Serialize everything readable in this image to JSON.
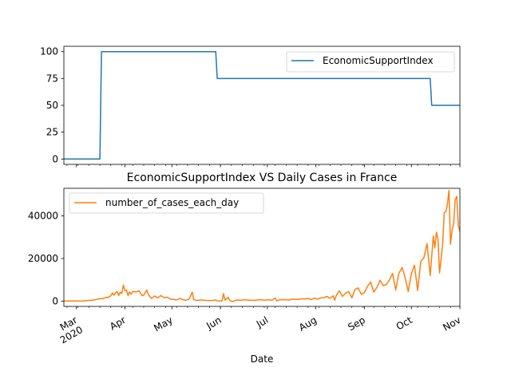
{
  "figure": {
    "xlabel": "Date",
    "x_tick_labels": [
      {
        "date": "2020-03-01",
        "lines": [
          "Mar",
          "2020"
        ]
      },
      {
        "date": "2020-04-01",
        "lines": [
          "Apr"
        ]
      },
      {
        "date": "2020-05-01",
        "lines": [
          "May"
        ]
      },
      {
        "date": "2020-06-01",
        "lines": [
          "Jun"
        ]
      },
      {
        "date": "2020-07-01",
        "lines": [
          "Jul"
        ]
      },
      {
        "date": "2020-08-01",
        "lines": [
          "Aug"
        ]
      },
      {
        "date": "2020-09-01",
        "lines": [
          "Sep"
        ]
      },
      {
        "date": "2020-10-01",
        "lines": [
          "Oct"
        ]
      },
      {
        "date": "2020-11-01",
        "lines": [
          "Nov"
        ]
      }
    ]
  },
  "chart_data": [
    {
      "type": "line",
      "title": "",
      "xlabel": "",
      "ylabel": "",
      "xlim": [
        "2020-02-22",
        "2020-11-01"
      ],
      "ylim": [
        -5,
        105
      ],
      "yticks": [
        0,
        25,
        50,
        75,
        100
      ],
      "legend": "top-right",
      "grid": false,
      "series": [
        {
          "name": "EconomicSupportIndex",
          "color": "#1f77b4",
          "step": true,
          "points": [
            [
              "2020-02-22",
              0
            ],
            [
              "2020-03-16",
              0
            ],
            [
              "2020-03-17",
              100
            ],
            [
              "2020-05-29",
              100
            ],
            [
              "2020-05-30",
              75
            ],
            [
              "2020-10-13",
              75
            ],
            [
              "2020-10-14",
              50
            ],
            [
              "2020-11-01",
              50
            ]
          ]
        }
      ]
    },
    {
      "type": "line",
      "title": "EconomicSupportIndex VS Daily Cases in France",
      "xlabel": "Date",
      "ylabel": "",
      "xlim": [
        "2020-02-22",
        "2020-11-01"
      ],
      "ylim": [
        -2500,
        53000
      ],
      "yticks": [
        0,
        20000,
        40000
      ],
      "legend": "top-left",
      "grid": false,
      "series": [
        {
          "name": "number_of_cases_each_day",
          "color": "#ff7f0e",
          "points": [
            [
              "2020-02-22",
              0
            ],
            [
              "2020-02-29",
              20
            ],
            [
              "2020-03-05",
              100
            ],
            [
              "2020-03-09",
              300
            ],
            [
              "2020-03-12",
              500
            ],
            [
              "2020-03-14",
              800
            ],
            [
              "2020-03-16",
              1200
            ],
            [
              "2020-03-18",
              1100
            ],
            [
              "2020-03-20",
              1800
            ],
            [
              "2020-03-21",
              1600
            ],
            [
              "2020-03-23",
              2500
            ],
            [
              "2020-03-24",
              3800
            ],
            [
              "2020-03-25",
              2800
            ],
            [
              "2020-03-26",
              3900
            ],
            [
              "2020-03-27",
              4500
            ],
            [
              "2020-03-28",
              2600
            ],
            [
              "2020-03-29",
              4200
            ],
            [
              "2020-03-30",
              3500
            ],
            [
              "2020-03-31",
              7500
            ],
            [
              "2020-04-01",
              4800
            ],
            [
              "2020-04-02",
              5200
            ],
            [
              "2020-04-03",
              2500
            ],
            [
              "2020-04-04",
              4300
            ],
            [
              "2020-04-05",
              3200
            ],
            [
              "2020-04-06",
              4500
            ],
            [
              "2020-04-08",
              4300
            ],
            [
              "2020-04-10",
              4800
            ],
            [
              "2020-04-12",
              2500
            ],
            [
              "2020-04-13",
              2800
            ],
            [
              "2020-04-15",
              5200
            ],
            [
              "2020-04-16",
              3000
            ],
            [
              "2020-04-18",
              1200
            ],
            [
              "2020-04-20",
              2400
            ],
            [
              "2020-04-22",
              1500
            ],
            [
              "2020-04-24",
              2600
            ],
            [
              "2020-04-26",
              1600
            ],
            [
              "2020-04-28",
              1800
            ],
            [
              "2020-04-30",
              1000
            ],
            [
              "2020-05-02",
              800
            ],
            [
              "2020-05-04",
              500
            ],
            [
              "2020-05-06",
              1200
            ],
            [
              "2020-05-08",
              700
            ],
            [
              "2020-05-10",
              400
            ],
            [
              "2020-05-12",
              900
            ],
            [
              "2020-05-14",
              4200
            ],
            [
              "2020-05-15",
              600
            ],
            [
              "2020-05-17",
              300
            ],
            [
              "2020-05-20",
              500
            ],
            [
              "2020-05-23",
              300
            ],
            [
              "2020-05-26",
              200
            ],
            [
              "2020-05-29",
              500
            ],
            [
              "2020-05-30",
              100
            ],
            [
              "2020-06-02",
              0
            ],
            [
              "2020-06-03",
              3500
            ],
            [
              "2020-06-04",
              400
            ],
            [
              "2020-06-06",
              1800
            ],
            [
              "2020-06-07",
              200
            ],
            [
              "2020-06-09",
              -200
            ],
            [
              "2020-06-11",
              500
            ],
            [
              "2020-06-14",
              400
            ],
            [
              "2020-06-17",
              600
            ],
            [
              "2020-06-20",
              400
            ],
            [
              "2020-06-23",
              300
            ],
            [
              "2020-06-26",
              700
            ],
            [
              "2020-06-29",
              400
            ],
            [
              "2020-07-02",
              600
            ],
            [
              "2020-07-04",
              400
            ],
            [
              "2020-07-06",
              1500
            ],
            [
              "2020-07-07",
              100
            ],
            [
              "2020-07-09",
              600
            ],
            [
              "2020-07-12",
              700
            ],
            [
              "2020-07-15",
              500
            ],
            [
              "2020-07-17",
              900
            ],
            [
              "2020-07-20",
              800
            ],
            [
              "2020-07-23",
              1100
            ],
            [
              "2020-07-25",
              900
            ],
            [
              "2020-07-27",
              1300
            ],
            [
              "2020-07-29",
              700
            ],
            [
              "2020-07-31",
              1400
            ],
            [
              "2020-08-02",
              900
            ],
            [
              "2020-08-04",
              1500
            ],
            [
              "2020-08-06",
              1600
            ],
            [
              "2020-08-08",
              2200
            ],
            [
              "2020-08-10",
              1300
            ],
            [
              "2020-08-12",
              2500
            ],
            [
              "2020-08-13",
              400
            ],
            [
              "2020-08-14",
              2600
            ],
            [
              "2020-08-16",
              4800
            ],
            [
              "2020-08-18",
              2200
            ],
            [
              "2020-08-20",
              3800
            ],
            [
              "2020-08-22",
              4400
            ],
            [
              "2020-08-24",
              1500
            ],
            [
              "2020-08-26",
              5400
            ],
            [
              "2020-08-28",
              6200
            ],
            [
              "2020-08-30",
              3200
            ],
            [
              "2020-09-01",
              4000
            ],
            [
              "2020-09-03",
              7000
            ],
            [
              "2020-09-05",
              8900
            ],
            [
              "2020-09-07",
              4200
            ],
            [
              "2020-09-09",
              6500
            ],
            [
              "2020-09-11",
              9800
            ],
            [
              "2020-09-13",
              7200
            ],
            [
              "2020-09-15",
              7800
            ],
            [
              "2020-09-17",
              10000
            ],
            [
              "2020-09-19",
              13000
            ],
            [
              "2020-09-21",
              5200
            ],
            [
              "2020-09-23",
              13000
            ],
            [
              "2020-09-25",
              15800
            ],
            [
              "2020-09-27",
              11000
            ],
            [
              "2020-09-29",
              4500
            ],
            [
              "2020-10-01",
              12800
            ],
            [
              "2020-10-03",
              16900
            ],
            [
              "2020-10-05",
              5000
            ],
            [
              "2020-10-07",
              18700
            ],
            [
              "2020-10-09",
              20300
            ],
            [
              "2020-10-11",
              27000
            ],
            [
              "2020-10-13",
              12000
            ],
            [
              "2020-10-15",
              30600
            ],
            [
              "2020-10-16",
              25000
            ],
            [
              "2020-10-17",
              32400
            ],
            [
              "2020-10-18",
              29000
            ],
            [
              "2020-10-19",
              13200
            ],
            [
              "2020-10-20",
              20000
            ],
            [
              "2020-10-21",
              26700
            ],
            [
              "2020-10-22",
              41600
            ],
            [
              "2020-10-23",
              42000
            ],
            [
              "2020-10-24",
              45400
            ],
            [
              "2020-10-25",
              52000
            ],
            [
              "2020-10-26",
              26700
            ],
            [
              "2020-10-27",
              33400
            ],
            [
              "2020-10-28",
              36400
            ],
            [
              "2020-10-29",
              47600
            ],
            [
              "2020-10-30",
              49200
            ],
            [
              "2020-10-31",
              35600
            ],
            [
              "2020-11-01",
              32800
            ]
          ]
        }
      ]
    }
  ]
}
